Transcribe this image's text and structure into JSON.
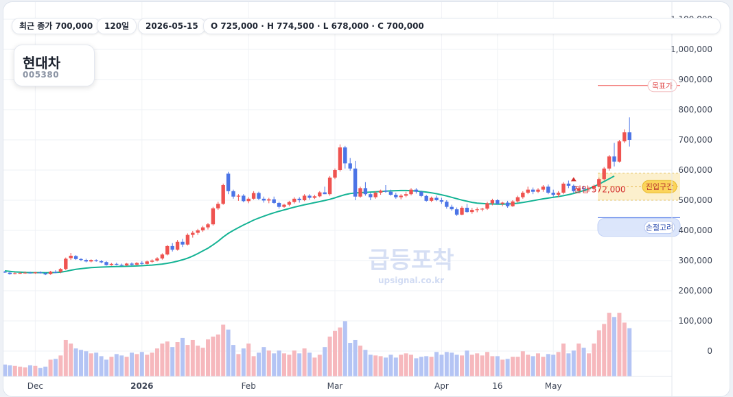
{
  "summary": {
    "last_close": "최근 종가 700,000",
    "period": "120일",
    "date": "2026-05-15",
    "ohlc": "O 725,000 · H 774,500 · L 678,000 · C 700,000"
  },
  "stock": {
    "name": "현대차",
    "code": "005380"
  },
  "watermark": {
    "title": "급등포착",
    "url": "upsignal.co.kr"
  },
  "annotations": {
    "target_label": "목표가",
    "entry_zone_label": "진입구간",
    "stop_label": "손절고려",
    "entry_text": "진입 572,000"
  },
  "colors": {
    "up": "#ef5350",
    "down": "#4b74e6",
    "ma": "#14b394",
    "up_vol": "#f6b8bd",
    "down_vol": "#b4c4f4"
  },
  "chart_data": {
    "type": "candlestick",
    "price_axis_ticks": [
      "1,100,000",
      "1,000,000",
      "900,000",
      "800,000",
      "700,000",
      "600,000",
      "500,000",
      "400,000",
      "300,000",
      "200,000",
      "100,000",
      "0"
    ],
    "price_ylim": [
      0,
      1100000
    ],
    "time_axis_labels": [
      {
        "label": "Dec",
        "bold": false,
        "index": 6
      },
      {
        "label": "2026",
        "bold": true,
        "index": 27
      },
      {
        "label": "Feb",
        "bold": false,
        "index": 48
      },
      {
        "label": "Mar",
        "bold": false,
        "index": 65
      },
      {
        "label": "Apr",
        "bold": false,
        "index": 86
      },
      {
        "label": "16",
        "bold": false,
        "index": 97
      },
      {
        "label": "May",
        "bold": false,
        "index": 108
      }
    ],
    "levels": {
      "target": 880000,
      "entry_zone": [
        500000,
        590000
      ],
      "entry_mid": 545000,
      "stop_zone": [
        380000,
        440000
      ],
      "entry_price": 572000
    },
    "entry_marker_index": 112,
    "candles": [
      [
        263000,
        266000,
        259000,
        261000,
        17
      ],
      [
        260000,
        262000,
        253000,
        255000,
        16
      ],
      [
        256000,
        261000,
        254000,
        258000,
        15
      ],
      [
        258000,
        262000,
        255000,
        259000,
        14
      ],
      [
        259000,
        264000,
        256000,
        260000,
        13
      ],
      [
        260000,
        263000,
        257000,
        258000,
        16
      ],
      [
        258000,
        262000,
        256000,
        261000,
        15
      ],
      [
        261000,
        264000,
        257000,
        259000,
        12
      ],
      [
        258000,
        261000,
        252000,
        254000,
        14
      ],
      [
        255000,
        266000,
        253000,
        263000,
        24
      ],
      [
        262000,
        268000,
        258000,
        260000,
        25
      ],
      [
        262000,
        275000,
        258000,
        272000,
        30
      ],
      [
        272000,
        310000,
        268000,
        306000,
        52
      ],
      [
        308000,
        325000,
        302000,
        316000,
        47
      ],
      [
        315000,
        318000,
        302000,
        305000,
        40
      ],
      [
        305000,
        308000,
        298000,
        302000,
        38
      ],
      [
        302000,
        306000,
        294000,
        297000,
        36
      ],
      [
        297000,
        304000,
        294000,
        302000,
        33
      ],
      [
        301000,
        304000,
        296000,
        298000,
        34
      ],
      [
        298000,
        302000,
        291000,
        294000,
        29
      ],
      [
        295000,
        298000,
        283000,
        285000,
        24
      ],
      [
        285000,
        292000,
        283000,
        289000,
        28
      ],
      [
        289000,
        293000,
        284000,
        286000,
        32
      ],
      [
        286000,
        290000,
        281000,
        284000,
        30
      ],
      [
        284000,
        292000,
        282000,
        290000,
        28
      ],
      [
        290000,
        294000,
        283000,
        286000,
        34
      ],
      [
        286000,
        295000,
        284000,
        292000,
        32
      ],
      [
        292000,
        298000,
        286000,
        289000,
        35
      ],
      [
        289000,
        300000,
        287000,
        297000,
        31
      ],
      [
        296000,
        304000,
        292000,
        300000,
        34
      ],
      [
        300000,
        311000,
        297000,
        307000,
        40
      ],
      [
        307000,
        324000,
        303000,
        320000,
        47
      ],
      [
        320000,
        352000,
        317000,
        348000,
        50
      ],
      [
        348000,
        358000,
        330000,
        336000,
        42
      ],
      [
        336000,
        368000,
        333000,
        362000,
        49
      ],
      [
        362000,
        372000,
        345000,
        353000,
        55
      ],
      [
        353000,
        390000,
        350000,
        385000,
        45
      ],
      [
        385000,
        398000,
        376000,
        392000,
        52
      ],
      [
        392000,
        405000,
        385000,
        400000,
        44
      ],
      [
        400000,
        415000,
        395000,
        410000,
        41
      ],
      [
        410000,
        425000,
        403000,
        420000,
        53
      ],
      [
        420000,
        478000,
        416000,
        473000,
        57
      ],
      [
        473000,
        495000,
        468000,
        488000,
        60
      ],
      [
        488000,
        555000,
        485000,
        550000,
        74
      ],
      [
        588000,
        594000,
        520000,
        530000,
        67
      ],
      [
        530000,
        535000,
        505000,
        512000,
        45
      ],
      [
        512000,
        520000,
        498000,
        515000,
        32
      ],
      [
        515000,
        520000,
        493000,
        497000,
        40
      ],
      [
        497000,
        510000,
        490000,
        505000,
        47
      ],
      [
        505000,
        530000,
        502000,
        524000,
        29
      ],
      [
        524000,
        528000,
        500000,
        505000,
        34
      ],
      [
        505000,
        512000,
        492000,
        499000,
        42
      ],
      [
        499000,
        508000,
        490000,
        503000,
        37
      ],
      [
        503000,
        512000,
        488000,
        491000,
        33
      ],
      [
        491000,
        495000,
        472000,
        478000,
        37
      ],
      [
        478000,
        488000,
        475000,
        485000,
        33
      ],
      [
        485000,
        498000,
        480000,
        494000,
        31
      ],
      [
        494000,
        510000,
        489000,
        505000,
        37
      ],
      [
        505000,
        510000,
        492000,
        500000,
        33
      ],
      [
        500000,
        520000,
        497000,
        515000,
        40
      ],
      [
        515000,
        520000,
        502000,
        508000,
        34
      ],
      [
        508000,
        518000,
        504000,
        513000,
        27
      ],
      [
        513000,
        530000,
        510000,
        526000,
        31
      ],
      [
        526000,
        545000,
        520000,
        520000,
        42
      ],
      [
        520000,
        580000,
        515000,
        575000,
        57
      ],
      [
        575000,
        605000,
        570000,
        600000,
        65
      ],
      [
        600000,
        685000,
        595000,
        675000,
        70
      ],
      [
        675000,
        680000,
        605000,
        622000,
        79
      ],
      [
        622000,
        640000,
        598000,
        605000,
        48
      ],
      [
        605000,
        630000,
        500000,
        512000,
        52
      ],
      [
        512000,
        545000,
        508000,
        540000,
        44
      ],
      [
        540000,
        560000,
        515000,
        520000,
        38
      ],
      [
        520000,
        525000,
        500000,
        510000,
        31
      ],
      [
        510000,
        530000,
        505000,
        525000,
        30
      ],
      [
        525000,
        535000,
        518000,
        532000,
        29
      ],
      [
        532000,
        550000,
        525000,
        528000,
        27
      ],
      [
        528000,
        535000,
        515000,
        518000,
        31
      ],
      [
        518000,
        525000,
        505000,
        510000,
        27
      ],
      [
        510000,
        520000,
        503000,
        515000,
        31
      ],
      [
        515000,
        528000,
        510000,
        520000,
        33
      ],
      [
        520000,
        540000,
        516000,
        535000,
        31
      ],
      [
        535000,
        540000,
        522000,
        528000,
        26
      ],
      [
        528000,
        532000,
        510000,
        514000,
        28
      ],
      [
        514000,
        518000,
        495000,
        498000,
        29
      ],
      [
        498000,
        512000,
        494000,
        508000,
        28
      ],
      [
        508000,
        515000,
        497000,
        500000,
        35
      ],
      [
        500000,
        508000,
        488000,
        495000,
        31
      ],
      [
        495000,
        500000,
        472000,
        478000,
        35
      ],
      [
        478000,
        485000,
        465000,
        470000,
        34
      ],
      [
        470000,
        476000,
        448000,
        452000,
        31
      ],
      [
        452000,
        480000,
        450000,
        475000,
        30
      ],
      [
        475000,
        488000,
        458000,
        461000,
        37
      ],
      [
        461000,
        475000,
        455000,
        468000,
        31
      ],
      [
        468000,
        476000,
        460000,
        470000,
        33
      ],
      [
        470000,
        475000,
        463000,
        472000,
        30
      ],
      [
        472000,
        495000,
        468000,
        490000,
        35
      ],
      [
        490000,
        505000,
        483000,
        500000,
        29
      ],
      [
        500000,
        504000,
        485000,
        488000,
        29
      ],
      [
        488000,
        495000,
        480000,
        492000,
        24
      ],
      [
        492000,
        498000,
        475000,
        480000,
        25
      ],
      [
        480000,
        500000,
        478000,
        496000,
        28
      ],
      [
        496000,
        515000,
        492000,
        510000,
        28
      ],
      [
        510000,
        530000,
        505000,
        525000,
        36
      ],
      [
        525000,
        545000,
        520000,
        535000,
        31
      ],
      [
        535000,
        542000,
        520000,
        528000,
        29
      ],
      [
        528000,
        540000,
        524000,
        535000,
        33
      ],
      [
        535000,
        550000,
        528000,
        545000,
        28
      ],
      [
        545000,
        552000,
        520000,
        525000,
        32
      ],
      [
        525000,
        535000,
        512000,
        518000,
        31
      ],
      [
        518000,
        530000,
        510000,
        525000,
        35
      ],
      [
        525000,
        560000,
        520000,
        555000,
        47
      ],
      [
        555000,
        565000,
        540000,
        548000,
        33
      ],
      [
        548000,
        552000,
        525000,
        530000,
        37
      ],
      [
        530000,
        545000,
        526000,
        540000,
        47
      ],
      [
        540000,
        548000,
        530000,
        536000,
        41
      ],
      [
        536000,
        545000,
        528000,
        540000,
        33
      ],
      [
        540000,
        552000,
        530000,
        548000,
        47
      ],
      [
        548000,
        575000,
        544000,
        570000,
        66
      ],
      [
        570000,
        610000,
        566000,
        605000,
        75
      ],
      [
        605000,
        650000,
        598000,
        645000,
        91
      ],
      [
        645000,
        690000,
        612000,
        628000,
        85
      ],
      [
        628000,
        700000,
        625000,
        695000,
        91
      ],
      [
        695000,
        735000,
        690000,
        725000,
        77
      ],
      [
        725000,
        774500,
        678000,
        700000,
        69
      ]
    ],
    "ma_line": [
      266000,
      264000,
      262500,
      261500,
      260500,
      260000,
      260000,
      260000,
      259500,
      260000,
      260500,
      261500,
      264000,
      268000,
      271000,
      273000,
      275000,
      276500,
      277500,
      278500,
      279000,
      279500,
      280000,
      280500,
      281000,
      281500,
      282000,
      283000,
      284000,
      285000,
      286500,
      288500,
      291000,
      294000,
      298000,
      302500,
      308000,
      315000,
      323000,
      332000,
      341000,
      352000,
      364000,
      378000,
      390000,
      400000,
      409000,
      418000,
      426000,
      434000,
      441000,
      447000,
      453000,
      458500,
      463500,
      468000,
      472500,
      477000,
      481000,
      485000,
      488500,
      492000,
      495500,
      499000,
      503000,
      508000,
      513500,
      518500,
      522000,
      524000,
      525000,
      526000,
      527000,
      528000,
      529000,
      530000,
      531000,
      531500,
      532000,
      532000,
      531500,
      530500,
      529000,
      527000,
      524500,
      521500,
      518000,
      514000,
      509500,
      505000,
      500500,
      496500,
      493000,
      490500,
      489000,
      488000,
      487500,
      487000,
      487000,
      487500,
      488500,
      490000,
      492500,
      495500,
      498500,
      501500,
      504500,
      507000,
      509500,
      512000,
      515000,
      518500,
      522500,
      527000,
      532000,
      538000,
      545500,
      553500,
      562000,
      571000,
      580000
    ]
  }
}
